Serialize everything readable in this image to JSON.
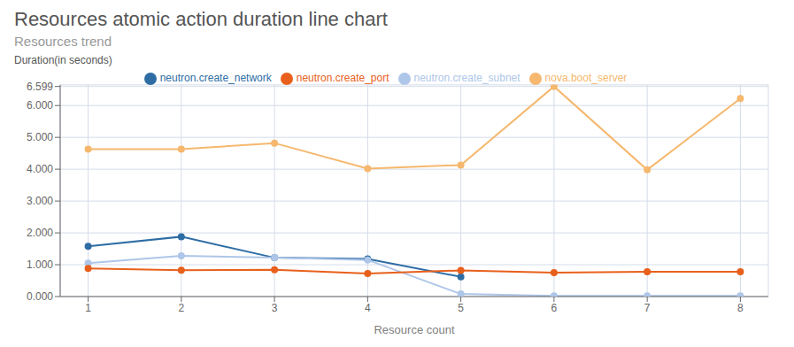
{
  "chart_data": {
    "type": "line",
    "title": "Resources atomic action duration line chart",
    "subtitle": "Resources trend",
    "ylabel": "Duration(in seconds)",
    "xlabel": "Resource count",
    "x": [
      1,
      2,
      3,
      4,
      5,
      6,
      7,
      8
    ],
    "series": [
      {
        "name": "neutron.create_network",
        "color": "#2e6da4",
        "marker": "circle",
        "values": [
          1.58,
          1.88,
          1.22,
          1.18,
          0.62,
          null,
          null,
          null
        ]
      },
      {
        "name": "neutron.create_subnet",
        "color": "#aec6e8",
        "marker": "circle",
        "values": [
          1.05,
          1.28,
          1.22,
          1.15,
          0.08,
          0.02,
          0.02,
          0.02
        ]
      },
      {
        "name": "neutron.create_port",
        "color": "#e8601c",
        "marker": "circle",
        "values": [
          0.88,
          0.83,
          0.84,
          0.72,
          0.82,
          0.75,
          0.78,
          0.78
        ]
      },
      {
        "name": "nova.boot_server",
        "color": "#f5b86e",
        "marker": "circle",
        "values": [
          4.63,
          4.63,
          4.82,
          4.02,
          4.13,
          6.599,
          3.98,
          6.22
        ]
      }
    ],
    "xlim": [
      0.7,
      8.3
    ],
    "xticks": [
      1,
      2,
      3,
      4,
      5,
      6,
      7,
      8
    ],
    "ylim": [
      0.0,
      6.65
    ],
    "yticks": [
      {
        "value": 0,
        "label": "0.000"
      },
      {
        "value": 1,
        "label": "1.000"
      },
      {
        "value": 2,
        "label": "2.000"
      },
      {
        "value": 3,
        "label": "3.000"
      },
      {
        "value": 4,
        "label": "4.000"
      },
      {
        "value": 5,
        "label": "5.000"
      },
      {
        "value": 6,
        "label": "6.000"
      },
      6.599
    ],
    "grid": true,
    "legend": "top"
  }
}
